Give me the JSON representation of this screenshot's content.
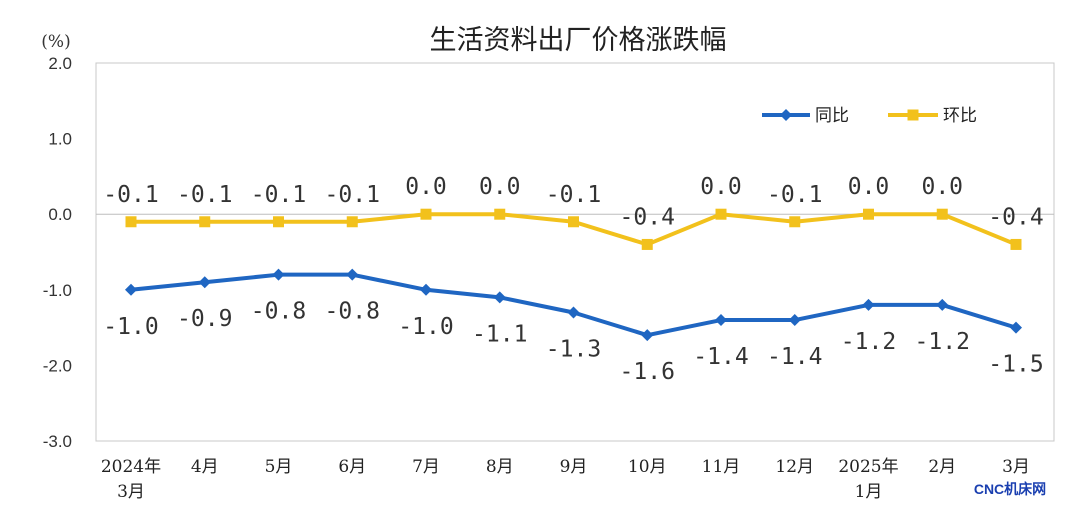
{
  "watermark": "CNC机床网",
  "chart_data": {
    "type": "line",
    "title": "生活资料出厂价格涨跌幅",
    "unit_label": "(%)",
    "ylim": [
      -3.0,
      2.0
    ],
    "yticks": [
      "2.0",
      "1.0",
      "0.0",
      "-1.0",
      "-2.0",
      "-3.0"
    ],
    "ytick_values": [
      2.0,
      1.0,
      0.0,
      -1.0,
      -2.0,
      -3.0
    ],
    "categories": [
      [
        "2024年",
        "3月"
      ],
      [
        "4月"
      ],
      [
        "5月"
      ],
      [
        "6月"
      ],
      [
        "7月"
      ],
      [
        "8月"
      ],
      [
        "9月"
      ],
      [
        "10月"
      ],
      [
        "11月"
      ],
      [
        "12月"
      ],
      [
        "2025年",
        "1月"
      ],
      [
        "2月"
      ],
      [
        "3月"
      ]
    ],
    "grid": false,
    "legend_position": "top-right",
    "series": [
      {
        "name": "同比",
        "color": "#1f66c2",
        "marker": "diamond",
        "label_position": "below",
        "values": [
          -1.0,
          -0.9,
          -0.8,
          -0.8,
          -1.0,
          -1.1,
          -1.3,
          -1.6,
          -1.4,
          -1.4,
          -1.2,
          -1.2,
          -1.5
        ],
        "labels": [
          "-1.0",
          "-0.9",
          "-0.8",
          "-0.8",
          "-1.0",
          "-1.1",
          "-1.3",
          "-1.6",
          "-1.4",
          "-1.4",
          "-1.2",
          "-1.2",
          "-1.5"
        ]
      },
      {
        "name": "环比",
        "color": "#f2c11c",
        "marker": "square",
        "label_position": "above",
        "values": [
          -0.1,
          -0.1,
          -0.1,
          -0.1,
          0.0,
          0.0,
          -0.1,
          -0.4,
          0.0,
          -0.1,
          0.0,
          0.0,
          -0.4
        ],
        "labels": [
          "-0.1",
          "-0.1",
          "-0.1",
          "-0.1",
          "0.0",
          "0.0",
          "-0.1",
          "-0.4",
          "0.0",
          "-0.1",
          "0.0",
          "0.0",
          "-0.4"
        ]
      }
    ]
  }
}
